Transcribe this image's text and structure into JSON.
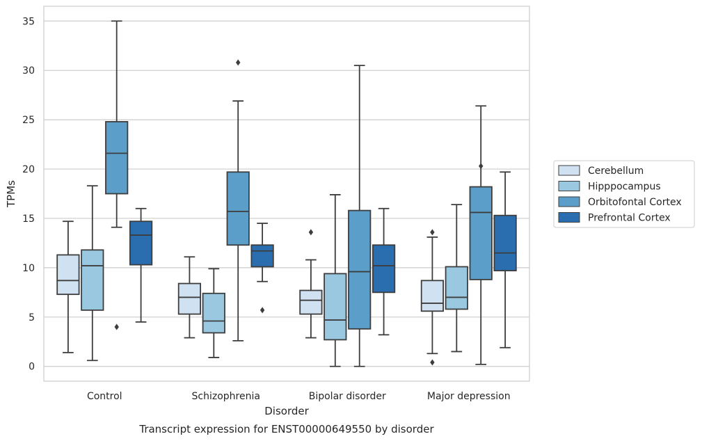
{
  "chart_data": {
    "type": "box",
    "xlabel": "Disorder",
    "ylabel": "TPMs",
    "caption": "Transcript expression for ENST00000649550 by disorder",
    "ylim": [
      -1.5,
      36.5
    ],
    "yticks": [
      0,
      5,
      10,
      15,
      20,
      25,
      30,
      35
    ],
    "grid": "horizontal",
    "legend_position": "right",
    "categories": [
      "Control",
      "Schizophrenia",
      "Bipolar disorder",
      "Major depression"
    ],
    "series": [
      {
        "name": "Cerebellum",
        "color": "#d0e1f2",
        "boxes": [
          {
            "whisker_low": 1.4,
            "q1": 7.3,
            "median": 8.7,
            "q3": 11.3,
            "whisker_high": 14.7,
            "outliers": []
          },
          {
            "whisker_low": 2.9,
            "q1": 5.3,
            "median": 7.0,
            "q3": 8.4,
            "whisker_high": 11.1,
            "outliers": []
          },
          {
            "whisker_low": 2.9,
            "q1": 5.3,
            "median": 6.7,
            "q3": 7.7,
            "whisker_high": 10.8,
            "outliers": [
              13.6
            ]
          },
          {
            "whisker_low": 1.3,
            "q1": 5.6,
            "median": 6.4,
            "q3": 8.7,
            "whisker_high": 13.1,
            "outliers": [
              13.6,
              0.4
            ]
          }
        ]
      },
      {
        "name": "Hipppocampus",
        "color": "#9ac8e0",
        "boxes": [
          {
            "whisker_low": 0.6,
            "q1": 5.7,
            "median": 10.2,
            "q3": 11.8,
            "whisker_high": 18.3,
            "outliers": []
          },
          {
            "whisker_low": 0.9,
            "q1": 3.4,
            "median": 4.6,
            "q3": 7.4,
            "whisker_high": 9.9,
            "outliers": []
          },
          {
            "whisker_low": 0.0,
            "q1": 2.7,
            "median": 4.7,
            "q3": 9.4,
            "whisker_high": 17.4,
            "outliers": []
          },
          {
            "whisker_low": 1.5,
            "q1": 5.8,
            "median": 7.0,
            "q3": 10.1,
            "whisker_high": 16.4,
            "outliers": []
          }
        ]
      },
      {
        "name": "Orbitofontal Cortex",
        "color": "#5a9ec9",
        "boxes": [
          {
            "whisker_low": 14.1,
            "q1": 17.5,
            "median": 21.6,
            "q3": 24.8,
            "whisker_high": 35.0,
            "outliers": [
              4.0
            ]
          },
          {
            "whisker_low": 2.6,
            "q1": 12.3,
            "median": 15.7,
            "q3": 19.7,
            "whisker_high": 26.9,
            "outliers": [
              30.8
            ]
          },
          {
            "whisker_low": 0.0,
            "q1": 3.8,
            "median": 9.6,
            "q3": 15.8,
            "whisker_high": 30.5,
            "outliers": []
          },
          {
            "whisker_low": 0.2,
            "q1": 8.8,
            "median": 15.6,
            "q3": 18.2,
            "whisker_high": 26.4,
            "outliers": [
              20.3
            ]
          }
        ]
      },
      {
        "name": "Prefrontal Cortex",
        "color": "#2a6eb0",
        "boxes": [
          {
            "whisker_low": 4.5,
            "q1": 10.3,
            "median": 13.3,
            "q3": 14.7,
            "whisker_high": 16.0,
            "outliers": []
          },
          {
            "whisker_low": 8.6,
            "q1": 10.1,
            "median": 11.7,
            "q3": 12.3,
            "whisker_high": 14.5,
            "outliers": [
              5.7
            ]
          },
          {
            "whisker_low": 3.2,
            "q1": 7.5,
            "median": 10.2,
            "q3": 12.3,
            "whisker_high": 16.0,
            "outliers": []
          },
          {
            "whisker_low": 1.9,
            "q1": 9.7,
            "median": 11.5,
            "q3": 15.3,
            "whisker_high": 19.7,
            "outliers": []
          }
        ]
      }
    ]
  }
}
